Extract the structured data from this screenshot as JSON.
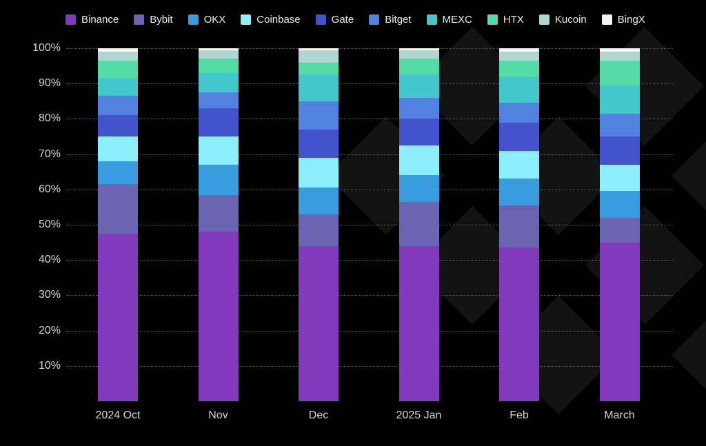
{
  "chart_data": {
    "type": "bar",
    "subtype": "stacked-100-percent",
    "title": "",
    "categories": [
      "2024 Oct",
      "Nov",
      "Dec",
      "2025 Jan",
      "Feb",
      "March"
    ],
    "series": [
      {
        "name": "Binance",
        "color": "#8239BC",
        "values": [
          47.5,
          48.0,
          44.0,
          44.0,
          43.5,
          45.0
        ]
      },
      {
        "name": "Bybit",
        "color": "#6B64B3",
        "values": [
          14.0,
          10.5,
          9.0,
          12.5,
          12.0,
          7.0
        ]
      },
      {
        "name": "OKX",
        "color": "#399CDF",
        "values": [
          6.5,
          8.5,
          7.5,
          7.5,
          7.5,
          7.5
        ]
      },
      {
        "name": "Coinbase",
        "color": "#8DEEFB",
        "values": [
          7.0,
          8.0,
          8.5,
          8.5,
          8.0,
          7.5
        ]
      },
      {
        "name": "Gate",
        "color": "#4353CD",
        "values": [
          6.0,
          8.0,
          8.0,
          7.5,
          8.0,
          8.0
        ]
      },
      {
        "name": "Bitget",
        "color": "#5282DF",
        "values": [
          5.5,
          4.5,
          8.0,
          6.0,
          5.5,
          6.5
        ]
      },
      {
        "name": "MEXC",
        "color": "#43C6CC",
        "values": [
          5.0,
          5.5,
          7.5,
          6.5,
          7.5,
          8.0
        ]
      },
      {
        "name": "HTX",
        "color": "#55DCA6",
        "values": [
          5.0,
          4.0,
          3.5,
          4.5,
          4.5,
          7.0
        ]
      },
      {
        "name": "Kucoin",
        "color": "#AFD6D2",
        "values": [
          2.5,
          2.5,
          3.5,
          2.5,
          2.5,
          2.5
        ]
      },
      {
        "name": "BingX",
        "color": "#F2F8EC",
        "values": [
          1.0,
          0.5,
          0.5,
          0.5,
          1.0,
          1.0
        ]
      }
    ],
    "y_ticks": [
      "100%",
      "90%",
      "80%",
      "70%",
      "60%",
      "50%",
      "40%",
      "30%",
      "20%",
      "10%"
    ],
    "ylim": [
      0,
      100
    ],
    "xlabel": "",
    "ylabel": "",
    "grid": "horizontal-dotted",
    "legend_position": "top"
  },
  "colors": {
    "background": "#000000",
    "grid_line": "#6B6B6B",
    "axis_text": "#DAD4CA",
    "legend_text": "#F1EEE8",
    "watermark": "#121212"
  }
}
